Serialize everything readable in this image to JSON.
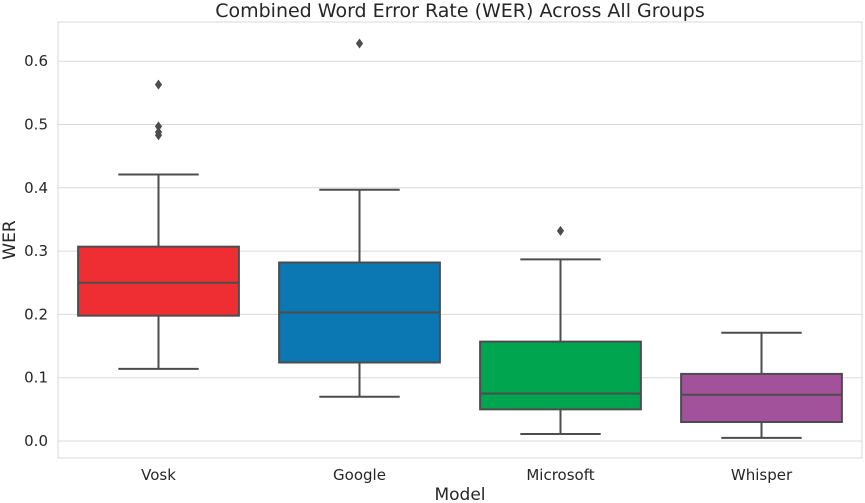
{
  "chart_data": {
    "type": "box",
    "title": "Combined Word Error Rate (WER) Across All Groups",
    "xlabel": "Model",
    "ylabel": "WER",
    "ylim": [
      -0.03,
      0.66
    ],
    "yticks": [
      "0.0",
      "0.1",
      "0.2",
      "0.3",
      "0.4",
      "0.5",
      "0.6"
    ],
    "grid": "horizontal",
    "legend": "none",
    "categories": [
      "Vosk",
      "Google",
      "Microsoft",
      "Whisper"
    ],
    "boxes": [
      {
        "category": "Vosk",
        "color": "#ef2e33",
        "whisker_low": 0.114,
        "q1": 0.198,
        "median": 0.25,
        "q3": 0.307,
        "whisker_high": 0.421,
        "outliers": [
          0.483,
          0.488,
          0.497,
          0.563
        ]
      },
      {
        "category": "Google",
        "color": "#0b77b3",
        "whisker_low": 0.07,
        "q1": 0.124,
        "median": 0.203,
        "q3": 0.282,
        "whisker_high": 0.397,
        "outliers": [
          0.628
        ]
      },
      {
        "category": "Microsoft",
        "color": "#00a550",
        "whisker_low": 0.011,
        "q1": 0.05,
        "median": 0.075,
        "q3": 0.157,
        "whisker_high": 0.287,
        "outliers": [
          0.332
        ]
      },
      {
        "category": "Whisper",
        "color": "#a2519b",
        "whisker_low": 0.005,
        "q1": 0.03,
        "median": 0.073,
        "q3": 0.106,
        "whisker_high": 0.171,
        "outliers": []
      }
    ]
  }
}
